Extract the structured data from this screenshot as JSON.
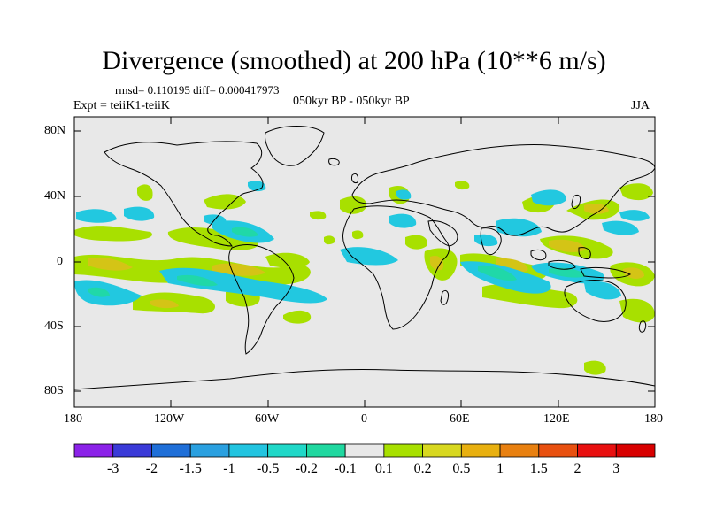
{
  "title": "Divergence (smoothed) at 200 hPa (10**6 m/s)",
  "stats_line": "rmsd= 0.110195 diff= 0.000417973",
  "left_label": "Expt = teiiK1-teiiK",
  "center_label": "050kyr BP - 050kyr BP",
  "right_label": "JJA",
  "lat_ticks": [
    "80N",
    "40N",
    "0",
    "40S",
    "80S"
  ],
  "lon_ticks": [
    "180",
    "120W",
    "60W",
    "0",
    "60E",
    "120E",
    "180"
  ],
  "colorbar": {
    "labels": [
      "-3",
      "-2",
      "-1.5",
      "-1",
      "-0.5",
      "-0.2",
      "-0.1",
      "0.1",
      "0.2",
      "0.5",
      "1",
      "1.5",
      "2",
      "3"
    ],
    "colors": [
      "#8b22e8",
      "#3a3ad8",
      "#1f6fd8",
      "#2aa0e0",
      "#22c4e0",
      "#20d8c8",
      "#20d8a0",
      "#e8e8e8",
      "#a8e000",
      "#d8d820",
      "#e8b010",
      "#e88010",
      "#e85010",
      "#e81010",
      "#d80000"
    ]
  },
  "map": {
    "background_color": "#e8e8e8",
    "positive_color": "#a8e000",
    "positive_strong_color": "#d4c416",
    "negative_color": "#22c8e0",
    "negative_strong_color": "#20d8a8"
  }
}
